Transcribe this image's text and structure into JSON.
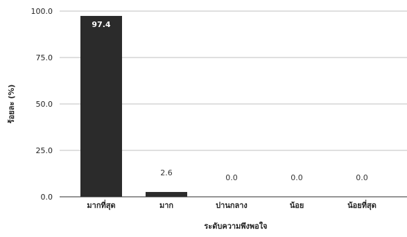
{
  "chart_data": {
    "type": "bar",
    "title": "",
    "xlabel": "ระดับความพึงพอใจ",
    "ylabel": "ร้อยละ (%)",
    "categories": [
      "มากที่สุด",
      "มาก",
      "ปานกลาง",
      "น้อย",
      "น้อยที่สุด"
    ],
    "values": [
      97.4,
      2.6,
      0.0,
      0.0,
      0.0
    ],
    "value_labels": [
      "97.4",
      "2.6",
      "0.0",
      "0.0",
      "0.0"
    ],
    "ylim": [
      0,
      100
    ],
    "y_ticks": [
      "0.0",
      "25.0",
      "50.0",
      "75.0",
      "100.0"
    ],
    "grid": true,
    "legend": "none",
    "bar_color": "#2b2b2b",
    "grid_color": "#bfbfbf"
  }
}
